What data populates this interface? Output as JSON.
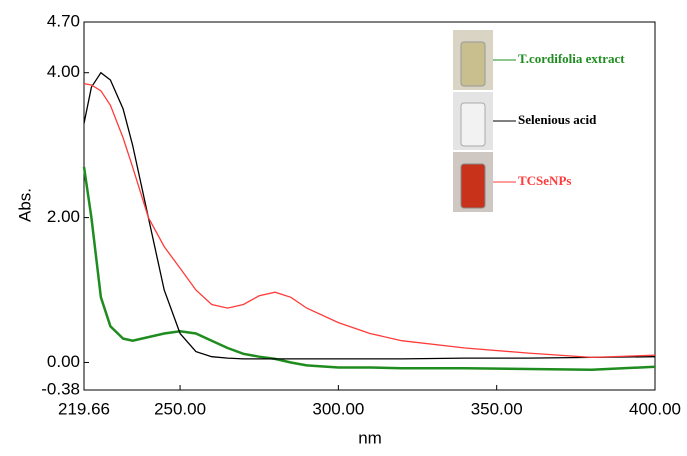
{
  "chart_data": {
    "type": "line",
    "x_label": "nm",
    "y_label": "Abs.",
    "x": [
      219.66,
      222,
      225,
      228,
      232,
      235,
      240,
      245,
      250,
      255,
      260,
      265,
      270,
      275,
      280,
      285,
      290,
      300,
      310,
      320,
      340,
      360,
      380,
      400
    ],
    "series": [
      {
        "name": "T.cordifolia extract",
        "color": "#1f8c1f",
        "values": [
          2.7,
          2.0,
          0.9,
          0.5,
          0.33,
          0.3,
          0.35,
          0.4,
          0.43,
          0.4,
          0.3,
          0.2,
          0.12,
          0.08,
          0.05,
          0.0,
          -0.04,
          -0.07,
          -0.07,
          -0.08,
          -0.08,
          -0.09,
          -0.1,
          -0.06
        ]
      },
      {
        "name": "Selenious acid",
        "color": "#000000",
        "values": [
          3.3,
          3.8,
          4.0,
          3.9,
          3.5,
          3.0,
          2.0,
          1.0,
          0.4,
          0.15,
          0.08,
          0.06,
          0.05,
          0.05,
          0.05,
          0.05,
          0.05,
          0.05,
          0.05,
          0.05,
          0.06,
          0.06,
          0.07,
          0.08
        ]
      },
      {
        "name": "TCSeNPs",
        "color": "#ff3b3b",
        "values": [
          3.85,
          3.83,
          3.75,
          3.55,
          3.1,
          2.7,
          2.0,
          1.6,
          1.3,
          1.0,
          0.8,
          0.75,
          0.8,
          0.92,
          0.97,
          0.9,
          0.75,
          0.55,
          0.4,
          0.3,
          0.2,
          0.13,
          0.07,
          0.1
        ]
      }
    ],
    "xlim": [
      219.66,
      400
    ],
    "xticks": [
      219.66,
      {
        "value": 250,
        "label": "250.00"
      },
      {
        "value": 300,
        "label": "300.00"
      },
      {
        "value": 350,
        "label": "350.00"
      },
      {
        "value": 400,
        "label": "400.00"
      }
    ],
    "ylim": [
      -0.38,
      4.7
    ],
    "yticks": [
      -0.38,
      {
        "value": 0,
        "label": "0.00"
      },
      {
        "value": 2,
        "label": "2.00"
      },
      {
        "value": 4,
        "label": "4.00"
      },
      {
        "value": 4.7,
        "label": "4.70"
      }
    ]
  }
}
